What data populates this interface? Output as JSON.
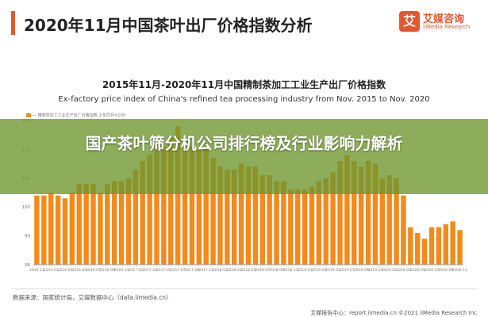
{
  "header": {
    "title": "2020年11月中国茶叶出厂价格指数分析",
    "logo_glyph": "艾",
    "logo_name": "艾媒咨询",
    "logo_sub": "iiMedia Research"
  },
  "banner": {
    "headline": "国产茶叶筛分机公司排行榜及行业影响力解析"
  },
  "legend": {
    "label": "— 精制茶加工工业生产出厂价格指数 上年同月=100"
  },
  "footer": {
    "source": "数据来源：国家统计局，艾媒数据中心（data.iimedia.cn）",
    "copyright": "艾媒报告中心：report.iimedia.cn   ©2021  iiMedia Research Inc"
  },
  "colors": {
    "bar": "#f28a1c",
    "accent": "#e4572e",
    "banner": "#6e962d"
  },
  "chart_data": {
    "type": "bar",
    "title": "2015年11月-2020年11月中国精制茶加工工业生产出厂价格指数",
    "subtitle": "Ex-factory price index of China's refined tea processing industry from Nov. 2015 to Nov. 2020",
    "ylim": [
      98,
      103
    ],
    "yticks": [
      98,
      99,
      100,
      101,
      102,
      103
    ],
    "grid": false,
    "x_tick_labels": [
      "2015-11",
      "2016-01",
      "2016-03",
      "2016-05",
      "2016-07",
      "2016-09",
      "2016-11",
      "2017-01",
      "2017-03",
      "2017-05",
      "2017-07",
      "2017-09",
      "2017-11",
      "2018-01",
      "2018-03",
      "2018-05",
      "2018-07",
      "2018-09",
      "2018-11",
      "2019-01",
      "2019-03",
      "2019-05",
      "2019-07",
      "2019-09",
      "2019-11",
      "2020-01",
      "2020-03",
      "2020-05",
      "2020-07",
      "2020-09",
      "2020-11"
    ],
    "categories": [
      "2015-11",
      "2015-12",
      "2016-01",
      "2016-02",
      "2016-03",
      "2016-04",
      "2016-05",
      "2016-06",
      "2016-07",
      "2016-08",
      "2016-09",
      "2016-10",
      "2016-11",
      "2016-12",
      "2017-01",
      "2017-02",
      "2017-03",
      "2017-04",
      "2017-05",
      "2017-06",
      "2017-07",
      "2017-08",
      "2017-09",
      "2017-10",
      "2017-11",
      "2017-12",
      "2018-01",
      "2018-02",
      "2018-03",
      "2018-04",
      "2018-05",
      "2018-06",
      "2018-07",
      "2018-08",
      "2018-09",
      "2018-10",
      "2018-11",
      "2018-12",
      "2019-01",
      "2019-02",
      "2019-03",
      "2019-04",
      "2019-05",
      "2019-06",
      "2019-07",
      "2019-08",
      "2019-09",
      "2019-10",
      "2019-11",
      "2019-12",
      "2020-01",
      "2020-02",
      "2020-03",
      "2020-04",
      "2020-05",
      "2020-06",
      "2020-07",
      "2020-08",
      "2020-09",
      "2020-10",
      "2020-11"
    ],
    "values": [
      100.4,
      100.4,
      100.5,
      100.4,
      100.3,
      100.5,
      100.8,
      100.8,
      100.8,
      100.5,
      100.8,
      100.9,
      100.9,
      101.0,
      101.3,
      101.6,
      101.8,
      102.0,
      102.1,
      102.4,
      102.8,
      102.3,
      102.1,
      102.0,
      102.0,
      101.7,
      101.4,
      101.3,
      101.3,
      101.5,
      101.4,
      101.4,
      101.1,
      101.1,
      100.9,
      100.9,
      100.6,
      100.6,
      100.6,
      100.7,
      100.9,
      101.0,
      101.2,
      101.6,
      101.8,
      101.6,
      101.4,
      101.6,
      101.5,
      101.0,
      101.1,
      101.0,
      100.4,
      99.3,
      99.1,
      98.9,
      99.3,
      99.3,
      99.4,
      99.5,
      99.2
    ]
  }
}
